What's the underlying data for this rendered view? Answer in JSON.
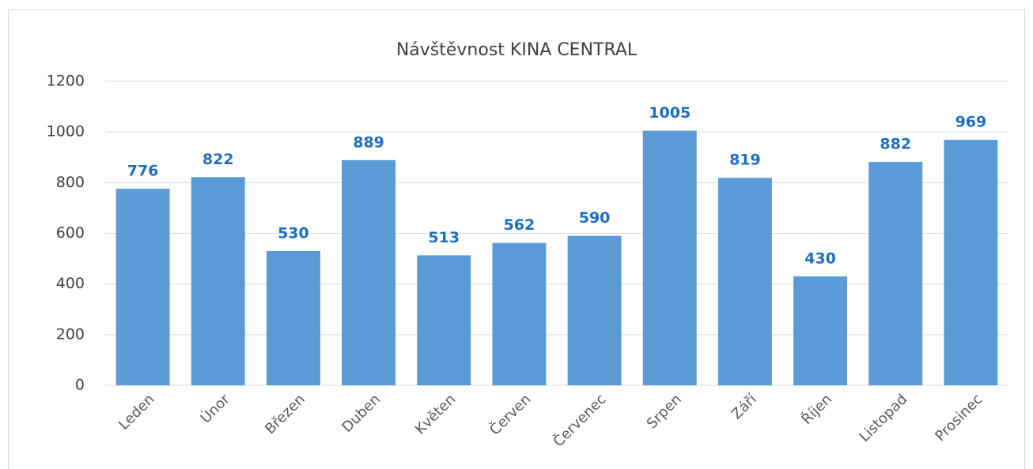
{
  "chart_data": {
    "type": "bar",
    "title": "Návštěvnost KINA CENTRAL",
    "categories": [
      "Leden",
      "Únor",
      "Březen",
      "Duben",
      "Květen",
      "Červen",
      "Červenec",
      "Srpen",
      "Září",
      "Říjen",
      "Listopad",
      "Prosinec"
    ],
    "values": [
      776,
      822,
      530,
      889,
      513,
      562,
      590,
      1005,
      819,
      430,
      882,
      969
    ],
    "color": "#5b9bd5",
    "label_color": "#1f6fbf",
    "ylim": [
      0,
      1200
    ],
    "yticks": [
      0,
      200,
      400,
      600,
      800,
      1000,
      1200
    ],
    "grid": true
  }
}
